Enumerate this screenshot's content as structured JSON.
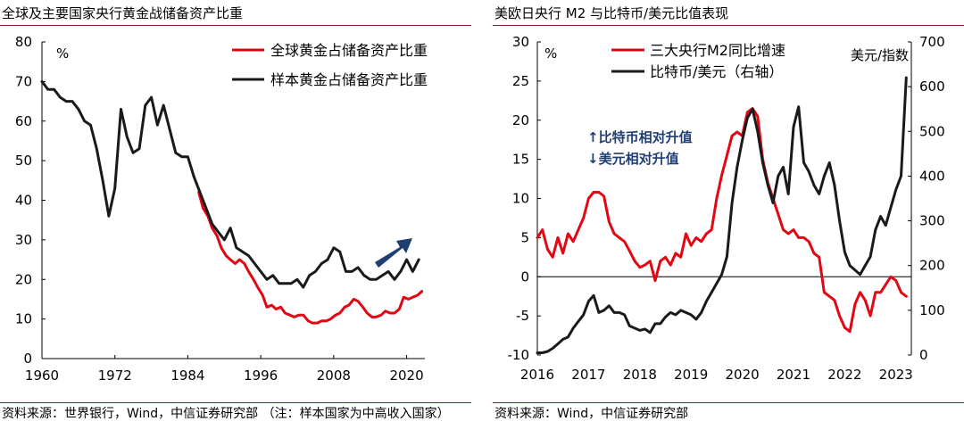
{
  "chart_data": [
    {
      "type": "line",
      "title": "全球及主要国家央行黄金战储备资产比重",
      "ylabel": "%",
      "ylim": [
        0,
        80
      ],
      "yticks": [
        0,
        10,
        20,
        30,
        40,
        50,
        60,
        70,
        80
      ],
      "xlim": [
        1960,
        2023
      ],
      "xticks": [
        1960,
        1972,
        1984,
        1996,
        2008,
        2020
      ],
      "legend_position": "top-right",
      "series": [
        {
          "name": "全球黄金占储备资产比重",
          "color": "#e30613",
          "x": [
            1985.8,
            1986.5,
            1987.3,
            1988,
            1988.8,
            1989.5,
            1990.3,
            1991,
            1991.8,
            1992.5,
            1993.3,
            1994,
            1994.8,
            1995.5,
            1996.3,
            1997,
            1997.8,
            1998.5,
            1999.3,
            2000,
            2000.8,
            2001.5,
            2002.3,
            2003,
            2003.8,
            2004.5,
            2005.3,
            2006,
            2006.8,
            2007.5,
            2008.3,
            2009,
            2009.8,
            2010.5,
            2011.3,
            2012,
            2012.8,
            2013.5,
            2014.3,
            2015,
            2015.8,
            2016.5,
            2017.3,
            2018,
            2018.8,
            2019.5,
            2020.3,
            2021,
            2021.8,
            2022.5
          ],
          "values": [
            42,
            38,
            36,
            33,
            31,
            28,
            26,
            25,
            24,
            25,
            24,
            22,
            20,
            18,
            16,
            13,
            13.5,
            12.5,
            13,
            11.5,
            11,
            10.5,
            11,
            11,
            9.5,
            9,
            9,
            9.5,
            9.5,
            10,
            11,
            11.5,
            13,
            13.5,
            15,
            14.5,
            13,
            11.5,
            10.5,
            10.5,
            11,
            12,
            11.5,
            11.5,
            12.5,
            15.5,
            15,
            15.5,
            16,
            17
          ]
        },
        {
          "name": "样本黄金占储备资产比重",
          "color": "#1a1a1a",
          "x": [
            1960,
            1961,
            1962,
            1963,
            1964,
            1965,
            1966,
            1967,
            1968,
            1969,
            1970,
            1971,
            1972,
            1973,
            1974,
            1975,
            1976,
            1977,
            1978,
            1979,
            1980,
            1981,
            1982,
            1983,
            1984,
            1985,
            1986,
            1987,
            1988,
            1989,
            1990,
            1991,
            1992,
            1993,
            1994,
            1995,
            1996,
            1997,
            1998,
            1999,
            2000,
            2001,
            2002,
            2003,
            2004,
            2005,
            2006,
            2007,
            2008,
            2009,
            2010,
            2011,
            2012,
            2013,
            2014,
            2015,
            2016,
            2017,
            2018,
            2019,
            2020,
            2021,
            2022
          ],
          "values": [
            70,
            68,
            68,
            66,
            65,
            65,
            63,
            60,
            59,
            53,
            45,
            36,
            43,
            63,
            56,
            52,
            53,
            64,
            66,
            59,
            64,
            58,
            52,
            51,
            51,
            46,
            42,
            38,
            34,
            32,
            30,
            33,
            28,
            27,
            26,
            24,
            22,
            20,
            21,
            19,
            19,
            19,
            20,
            18,
            21,
            22,
            24,
            25,
            28,
            27,
            22,
            22,
            23,
            21,
            20,
            20,
            21,
            22,
            20,
            22,
            25,
            22,
            25
          ]
        }
      ],
      "annotations": [
        {
          "type": "arrow",
          "direction": "up-right",
          "color": "#1f3f73"
        }
      ]
    },
    {
      "type": "line",
      "title": "美欧日央行 M2 与比特币/美元比值表现",
      "ylabel": "%",
      "y2label": "美元/指数",
      "ylim": [
        -10,
        30
      ],
      "yticks": [
        -10,
        -5,
        0,
        5,
        10,
        15,
        20,
        25,
        30
      ],
      "y2lim": [
        0,
        700
      ],
      "y2ticks": [
        0,
        100,
        200,
        300,
        400,
        500,
        600,
        700
      ],
      "xlim": [
        2016,
        2023.3
      ],
      "xticks": [
        2016,
        2017,
        2018,
        2019,
        2020,
        2021,
        2022,
        2023
      ],
      "legend_position": "top-left",
      "annotation_text": [
        "↑比特币相对升值",
        "↓美元相对升值"
      ],
      "series": [
        {
          "name": "三大央行M2同比增速",
          "axis": "left",
          "color": "#e30613",
          "x": [
            2016,
            2016.1,
            2016.2,
            2016.3,
            2016.4,
            2016.5,
            2016.6,
            2016.7,
            2016.8,
            2016.9,
            2017,
            2017.1,
            2017.2,
            2017.3,
            2017.4,
            2017.5,
            2017.6,
            2017.7,
            2017.8,
            2017.9,
            2018,
            2018.1,
            2018.2,
            2018.3,
            2018.4,
            2018.5,
            2018.6,
            2018.7,
            2018.8,
            2018.9,
            2019,
            2019.1,
            2019.2,
            2019.3,
            2019.4,
            2019.5,
            2019.6,
            2019.7,
            2019.8,
            2019.9,
            2020,
            2020.1,
            2020.2,
            2020.3,
            2020.4,
            2020.5,
            2020.6,
            2020.7,
            2020.8,
            2020.9,
            2021,
            2021.1,
            2021.2,
            2021.3,
            2021.4,
            2021.5,
            2021.6,
            2021.7,
            2021.8,
            2021.9,
            2022,
            2022.1,
            2022.2,
            2022.3,
            2022.4,
            2022.5,
            2022.6,
            2022.7,
            2022.8,
            2022.9,
            2023,
            2023.1,
            2023.2
          ],
          "values": [
            5,
            6,
            3.5,
            2.5,
            5,
            3,
            5.5,
            4.5,
            6,
            7.5,
            10,
            10.8,
            10.8,
            10.3,
            7,
            5.5,
            5,
            4.5,
            3.3,
            2,
            1.2,
            1.5,
            2,
            -0.5,
            2,
            2.5,
            1.5,
            3,
            2.5,
            5.5,
            4,
            5,
            4.5,
            5.5,
            6,
            10,
            13,
            15.5,
            18,
            18.5,
            18,
            21,
            21.5,
            20.5,
            15,
            12,
            10,
            8,
            6,
            5.5,
            6,
            5,
            5,
            4.5,
            3,
            2.5,
            -2,
            -2.5,
            -3,
            -5,
            -6.5,
            -7,
            -3.5,
            -2,
            -3,
            -5,
            -2,
            -2,
            -1,
            0,
            -0.5,
            -2,
            -2.5
          ]
        },
        {
          "name": "比特币/美元（右轴）",
          "axis": "right",
          "color": "#1a1a1a",
          "x": [
            2016,
            2016.1,
            2016.2,
            2016.3,
            2016.4,
            2016.5,
            2016.6,
            2016.7,
            2016.8,
            2016.9,
            2017,
            2017.1,
            2017.2,
            2017.3,
            2017.4,
            2017.5,
            2017.6,
            2017.7,
            2017.8,
            2017.9,
            2018,
            2018.1,
            2018.2,
            2018.3,
            2018.4,
            2018.5,
            2018.6,
            2018.7,
            2018.8,
            2018.9,
            2019,
            2019.1,
            2019.2,
            2019.3,
            2019.4,
            2019.5,
            2019.6,
            2019.7,
            2019.8,
            2019.9,
            2020,
            2020.1,
            2020.2,
            2020.3,
            2020.4,
            2020.5,
            2020.6,
            2020.7,
            2020.8,
            2020.9,
            2021,
            2021.1,
            2021.2,
            2021.3,
            2021.4,
            2021.5,
            2021.6,
            2021.7,
            2021.8,
            2021.9,
            2022,
            2022.1,
            2022.2,
            2022.3,
            2022.4,
            2022.5,
            2022.6,
            2022.7,
            2022.8,
            2022.9,
            2023,
            2023.1,
            2023.2
          ],
          "values": [
            5,
            5,
            8,
            15,
            25,
            35,
            40,
            60,
            75,
            90,
            120,
            133,
            95,
            100,
            110,
            95,
            95,
            90,
            65,
            60,
            55,
            58,
            50,
            70,
            70,
            85,
            95,
            90,
            100,
            95,
            90,
            80,
            95,
            120,
            140,
            160,
            180,
            220,
            340,
            420,
            480,
            530,
            550,
            500,
            430,
            380,
            340,
            400,
            420,
            360,
            510,
            555,
            430,
            410,
            380,
            360,
            400,
            430,
            380,
            300,
            230,
            200,
            190,
            180,
            200,
            220,
            280,
            310,
            290,
            330,
            370,
            400,
            620
          ]
        }
      ]
    }
  ],
  "left_panel": {
    "source": "资料来源：世界银行，Wind，中信证券研究部 （注：样本国家为中高收入国家）"
  },
  "right_panel": {
    "source": "资料来源：Wind，中信证券研究部"
  }
}
